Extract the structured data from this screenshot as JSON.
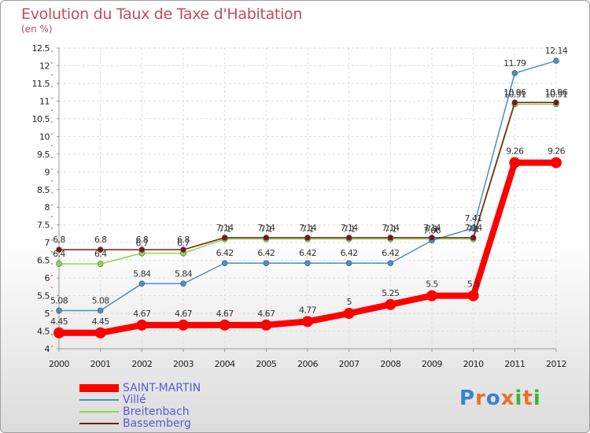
{
  "chart_data": {
    "type": "line",
    "title": "Evolution du Taux de Taxe d'Habitation",
    "subtitle": "(en %)",
    "xlabel": "",
    "ylabel": "",
    "x": [
      "2000",
      "2001",
      "2002",
      "2003",
      "2004",
      "2005",
      "2006",
      "2007",
      "2008",
      "2009",
      "2010",
      "2011",
      "2012"
    ],
    "ylim": [
      4,
      12.5
    ],
    "yticks": [
      "4",
      "4.5",
      "5",
      "5.5",
      "6",
      "6.5",
      "7",
      "7.5",
      "8",
      "8.5",
      "9",
      "9.5",
      "10",
      "10.5",
      "11",
      "11.5",
      "12",
      "12.5"
    ],
    "grid": true,
    "legend_position": "bottom-left",
    "series": [
      {
        "name": "SAINT-MARTIN",
        "color": "#ff0000",
        "values": [
          4.45,
          4.45,
          4.67,
          4.67,
          4.67,
          4.67,
          4.77,
          5,
          5.25,
          5.5,
          5.5,
          9.26,
          9.26
        ],
        "labels": [
          "4.45",
          "4.45",
          "4.67",
          "4.67",
          "4.67",
          "4.67",
          "4.77",
          "5",
          "5.25",
          "5.5",
          "5.5",
          "9.26",
          "9.26"
        ]
      },
      {
        "name": "Villé",
        "color": "#4a90c8",
        "values": [
          5.08,
          5.08,
          5.84,
          5.84,
          6.42,
          6.42,
          6.42,
          6.42,
          6.42,
          7.06,
          7.41,
          11.79,
          12.14
        ],
        "labels": [
          "5.08",
          "5.08",
          "5.84",
          "5.84",
          "6.42",
          "6.42",
          "6.42",
          "6.42",
          "6.42",
          "7.06",
          "7.41",
          "11.79",
          "12.14"
        ]
      },
      {
        "name": "Breitenbach",
        "color": "#88dd44",
        "values": [
          6.4,
          6.4,
          6.7,
          6.7,
          7.1,
          7.1,
          7.1,
          7.1,
          7.1,
          7.1,
          7.1,
          10.91,
          10.91
        ],
        "labels": [
          "6.4",
          "6.4",
          "6.7",
          "6.7",
          "7.1",
          "7.1",
          "7.1",
          "7.1",
          "7.1",
          "7.1",
          "7.1",
          "10.91",
          "10.91"
        ]
      },
      {
        "name": "Bassemberg",
        "color": "#7a1818",
        "values": [
          6.8,
          6.8,
          6.8,
          6.8,
          7.14,
          7.14,
          7.14,
          7.14,
          7.14,
          7.14,
          7.14,
          10.96,
          10.96
        ],
        "labels": [
          "6.8",
          "6.8",
          "6.8",
          "6.8",
          "7.14",
          "7.14",
          "7.14",
          "7.14",
          "7.14",
          "7.14",
          "7.14",
          "10.96",
          "10.96"
        ]
      }
    ]
  },
  "logo": {
    "text": "Proxiti",
    "colors": [
      "#3b7fd6",
      "#e8712a",
      "#3b7fd6",
      "#e8712a",
      "#3bb53b",
      "#e8712a",
      "#3bb53b"
    ]
  }
}
